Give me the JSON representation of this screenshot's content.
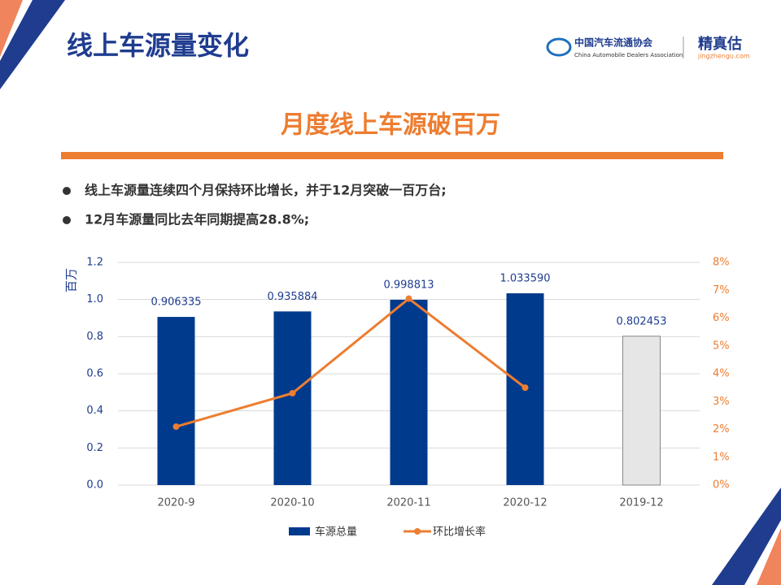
{
  "header": {
    "title": "线上车源量变化",
    "logo_cn": "中国汽车流通协会",
    "logo_en": "China Automobile Dealers Association",
    "brand": "精真估",
    "brand_url": "jingzhengu.com"
  },
  "subtitle": "月度线上车源破百万",
  "bullets": [
    "线上车源量连续四个月保持环比增长，并于12月突破一百万台;",
    "12月车源量同比去年同期提高28.8%;"
  ],
  "chart_data": {
    "type": "bar",
    "y_label": "百万",
    "categories": [
      "2020-9",
      "2020-10",
      "2020-11",
      "2020-12",
      "2019-12"
    ],
    "series": [
      {
        "name": "车源总量",
        "type": "bar",
        "color": "#003a8c",
        "colors": [
          "#003a8c",
          "#003a8c",
          "#003a8c",
          "#003a8c",
          "#e6e6e6"
        ],
        "values": [
          0.906335,
          0.935884,
          0.998813,
          1.03359,
          0.802453
        ],
        "value_labels": [
          "0.906335",
          "0.935884",
          "0.998813",
          "1.033590",
          "0.802453"
        ]
      },
      {
        "name": "环比增长率",
        "type": "line",
        "axis": "y2",
        "color": "#ed7d31",
        "values": [
          2.1,
          3.3,
          6.7,
          3.5,
          null
        ]
      }
    ],
    "ylim": [
      0,
      1.2
    ],
    "yticks": [
      {
        "value": 0,
        "label": "0.0"
      },
      {
        "value": 0.2,
        "label": "0.2"
      },
      {
        "value": 0.4,
        "label": "0.4"
      },
      {
        "value": 0.6,
        "label": "0.6"
      },
      {
        "value": 0.8,
        "label": "0.8"
      },
      {
        "value": 1,
        "label": "1.0"
      },
      {
        "value": 1.2,
        "label": "1.2"
      }
    ],
    "y2lim": [
      0,
      8
    ],
    "y2ticks": [
      {
        "value": 0,
        "label": "0%"
      },
      {
        "value": 1,
        "label": "1%"
      },
      {
        "value": 2,
        "label": "2%"
      },
      {
        "value": 3,
        "label": "3%"
      },
      {
        "value": 4,
        "label": "4%"
      },
      {
        "value": 5,
        "label": "5%"
      },
      {
        "value": 6,
        "label": "6%"
      },
      {
        "value": 7,
        "label": "7%"
      },
      {
        "value": 8,
        "label": "8%"
      }
    ],
    "grid": true,
    "legend": "bottom"
  }
}
